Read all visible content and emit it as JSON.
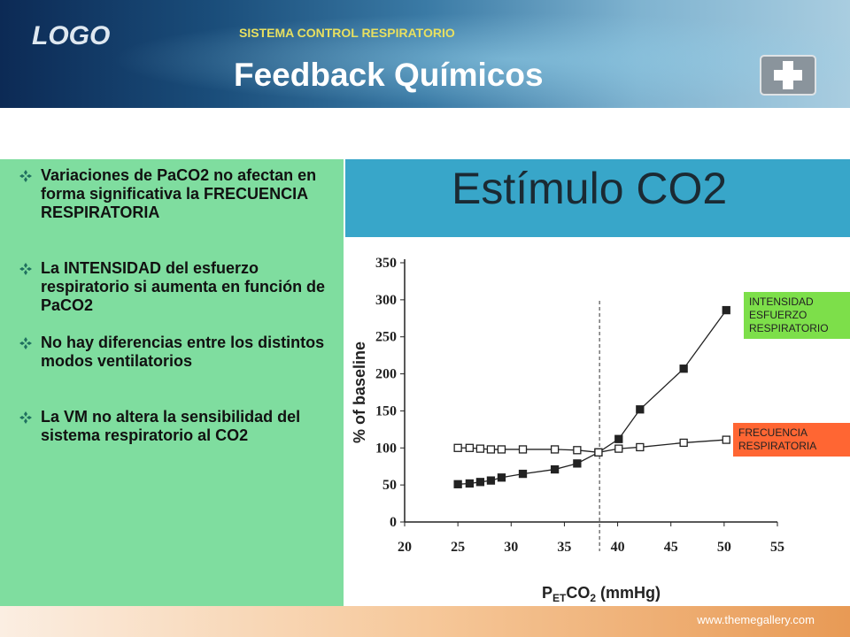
{
  "header": {
    "logo": "LOGO",
    "subtitle": "SISTEMA CONTROL RESPIRATORIO",
    "title": "Feedback Químicos"
  },
  "bullets": [
    "Variaciones de PaCO2 no afectan en forma significativa la FRECUENCIA RESPIRATORIA",
    "La INTENSIDAD del esfuerzo respiratorio si aumenta en función de PaCO2",
    "No hay diferencias entre los distintos modos ventilatorios",
    "La VM no altera la sensibilidad del sistema respiratorio al CO2"
  ],
  "panel_title": "Estímulo CO2",
  "chart_data": {
    "type": "line",
    "y_label": "% of baseline",
    "x_label_parts": [
      "P",
      "ET",
      "CO",
      "2",
      " (mmHg)"
    ],
    "xlim": [
      20,
      55
    ],
    "ylim": [
      0,
      350
    ],
    "xticks": [
      20,
      25,
      30,
      35,
      40,
      45,
      50,
      55
    ],
    "yticks": [
      0,
      50,
      100,
      150,
      200,
      250,
      300,
      350
    ],
    "reference_x": 38.3,
    "series": [
      {
        "name": "INTENSIDAD ESFUERZO RESPIRATORIO",
        "color": "#7ddf4a",
        "line_color": "#222222",
        "marker": "filled",
        "x": [
          25,
          26.1,
          27.1,
          28.1,
          29.1,
          31.1,
          34.1,
          36.2,
          38.2,
          40.1,
          42.1,
          46.2,
          50.2
        ],
        "values": [
          51,
          52,
          54,
          56,
          60,
          65,
          71,
          79,
          94,
          112,
          152,
          207,
          286
        ]
      },
      {
        "name": "FRECUENCIA RESPIRATORIA",
        "color": "#ff6633",
        "line_color": "#222222",
        "marker": "open",
        "x": [
          25,
          26.1,
          27.1,
          28.1,
          29.1,
          31.1,
          34.1,
          36.2,
          38.2,
          40.1,
          42.1,
          46.2,
          50.2
        ],
        "values": [
          100,
          100,
          99,
          98,
          98,
          98,
          98,
          97,
          94,
          99,
          101,
          107,
          111
        ]
      }
    ]
  },
  "footer": {
    "url": "www.themegallery.com"
  }
}
